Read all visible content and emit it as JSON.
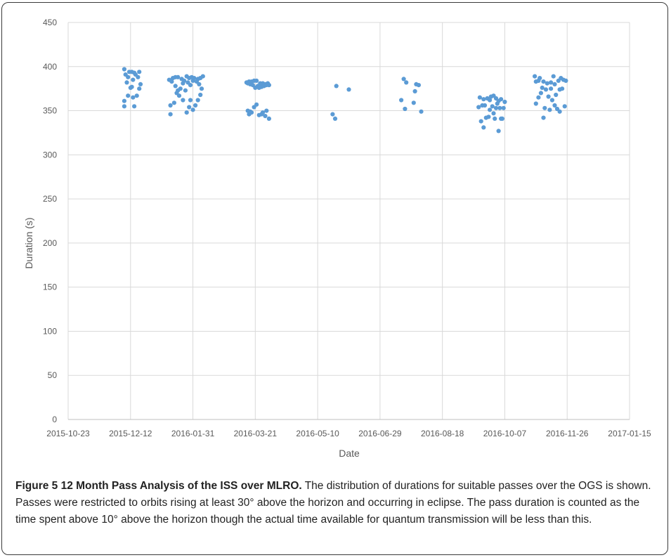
{
  "chart_data": {
    "type": "scatter",
    "title": "",
    "xlabel": "Date",
    "ylabel": "Duration (s)",
    "xlim": [
      "2015-10-23",
      "2017-01-15"
    ],
    "ylim": [
      0,
      450
    ],
    "x_tick_labels": [
      "2015-10-23",
      "2015-12-12",
      "2016-01-31",
      "2016-03-21",
      "2016-05-10",
      "2016-06-29",
      "2016-08-18",
      "2016-10-07",
      "2016-11-26",
      "2017-01-15"
    ],
    "y_tick_labels": [
      "0",
      "50",
      "100",
      "150",
      "200",
      "250",
      "300",
      "350",
      "400",
      "450"
    ],
    "y_ticks": [
      0,
      50,
      100,
      150,
      200,
      250,
      300,
      350,
      400,
      450
    ],
    "grid": true,
    "marker_color": "#5b9bd5",
    "points": [
      {
        "x": "2015-12-07",
        "y": 397
      },
      {
        "x": "2015-12-07",
        "y": 361
      },
      {
        "x": "2015-12-07",
        "y": 355
      },
      {
        "x": "2015-12-08",
        "y": 391
      },
      {
        "x": "2015-12-09",
        "y": 382
      },
      {
        "x": "2015-12-10",
        "y": 388
      },
      {
        "x": "2015-12-10",
        "y": 367
      },
      {
        "x": "2015-12-11",
        "y": 394
      },
      {
        "x": "2015-12-12",
        "y": 376
      },
      {
        "x": "2015-12-13",
        "y": 394
      },
      {
        "x": "2015-12-13",
        "y": 377
      },
      {
        "x": "2015-12-14",
        "y": 385
      },
      {
        "x": "2015-12-14",
        "y": 365
      },
      {
        "x": "2015-12-15",
        "y": 355
      },
      {
        "x": "2015-12-15",
        "y": 393
      },
      {
        "x": "2015-12-16",
        "y": 391
      },
      {
        "x": "2015-12-17",
        "y": 367
      },
      {
        "x": "2015-12-18",
        "y": 388
      },
      {
        "x": "2015-12-19",
        "y": 394
      },
      {
        "x": "2015-12-19",
        "y": 375
      },
      {
        "x": "2015-12-20",
        "y": 380
      },
      {
        "x": "2016-01-12",
        "y": 385
      },
      {
        "x": "2016-01-13",
        "y": 346
      },
      {
        "x": "2016-01-13",
        "y": 356
      },
      {
        "x": "2016-01-14",
        "y": 383
      },
      {
        "x": "2016-01-15",
        "y": 387
      },
      {
        "x": "2016-01-16",
        "y": 359
      },
      {
        "x": "2016-01-17",
        "y": 388
      },
      {
        "x": "2016-01-17",
        "y": 378
      },
      {
        "x": "2016-01-18",
        "y": 370
      },
      {
        "x": "2016-01-19",
        "y": 388
      },
      {
        "x": "2016-01-19",
        "y": 373
      },
      {
        "x": "2016-01-20",
        "y": 367
      },
      {
        "x": "2016-01-21",
        "y": 375
      },
      {
        "x": "2016-01-22",
        "y": 386
      },
      {
        "x": "2016-01-23",
        "y": 381
      },
      {
        "x": "2016-01-23",
        "y": 362
      },
      {
        "x": "2016-01-24",
        "y": 384
      },
      {
        "x": "2016-01-25",
        "y": 373
      },
      {
        "x": "2016-01-26",
        "y": 389
      },
      {
        "x": "2016-01-26",
        "y": 348
      },
      {
        "x": "2016-01-27",
        "y": 382
      },
      {
        "x": "2016-01-28",
        "y": 387
      },
      {
        "x": "2016-01-28",
        "y": 354
      },
      {
        "x": "2016-01-29",
        "y": 379
      },
      {
        "x": "2016-01-29",
        "y": 362
      },
      {
        "x": "2016-01-30",
        "y": 388
      },
      {
        "x": "2016-01-31",
        "y": 351
      },
      {
        "x": "2016-01-31",
        "y": 384
      },
      {
        "x": "2016-02-01",
        "y": 387
      },
      {
        "x": "2016-02-02",
        "y": 356
      },
      {
        "x": "2016-02-03",
        "y": 383
      },
      {
        "x": "2016-02-04",
        "y": 386
      },
      {
        "x": "2016-02-04",
        "y": 362
      },
      {
        "x": "2016-02-05",
        "y": 380
      },
      {
        "x": "2016-02-06",
        "y": 387
      },
      {
        "x": "2016-02-06",
        "y": 368
      },
      {
        "x": "2016-02-07",
        "y": 375
      },
      {
        "x": "2016-02-08",
        "y": 389
      },
      {
        "x": "2016-03-14",
        "y": 382
      },
      {
        "x": "2016-03-15",
        "y": 381
      },
      {
        "x": "2016-03-15",
        "y": 350
      },
      {
        "x": "2016-03-16",
        "y": 383
      },
      {
        "x": "2016-03-16",
        "y": 346
      },
      {
        "x": "2016-03-17",
        "y": 349
      },
      {
        "x": "2016-03-17",
        "y": 380
      },
      {
        "x": "2016-03-18",
        "y": 383
      },
      {
        "x": "2016-03-18",
        "y": 348
      },
      {
        "x": "2016-03-19",
        "y": 379
      },
      {
        "x": "2016-03-20",
        "y": 384
      },
      {
        "x": "2016-03-20",
        "y": 354
      },
      {
        "x": "2016-03-21",
        "y": 376
      },
      {
        "x": "2016-03-22",
        "y": 384
      },
      {
        "x": "2016-03-22",
        "y": 357
      },
      {
        "x": "2016-03-23",
        "y": 378
      },
      {
        "x": "2016-03-24",
        "y": 376
      },
      {
        "x": "2016-03-24",
        "y": 345
      },
      {
        "x": "2016-03-25",
        "y": 381
      },
      {
        "x": "2016-03-26",
        "y": 377
      },
      {
        "x": "2016-03-26",
        "y": 346
      },
      {
        "x": "2016-03-27",
        "y": 381
      },
      {
        "x": "2016-03-27",
        "y": 348
      },
      {
        "x": "2016-03-28",
        "y": 378
      },
      {
        "x": "2016-03-29",
        "y": 380
      },
      {
        "x": "2016-03-29",
        "y": 344
      },
      {
        "x": "2016-03-30",
        "y": 379
      },
      {
        "x": "2016-03-30",
        "y": 350
      },
      {
        "x": "2016-03-31",
        "y": 381
      },
      {
        "x": "2016-04-01",
        "y": 379
      },
      {
        "x": "2016-04-01",
        "y": 341
      },
      {
        "x": "2016-05-22",
        "y": 346
      },
      {
        "x": "2016-05-24",
        "y": 341
      },
      {
        "x": "2016-05-25",
        "y": 378
      },
      {
        "x": "2016-06-04",
        "y": 374
      },
      {
        "x": "2016-07-16",
        "y": 362
      },
      {
        "x": "2016-07-18",
        "y": 386
      },
      {
        "x": "2016-07-19",
        "y": 352
      },
      {
        "x": "2016-07-20",
        "y": 382
      },
      {
        "x": "2016-07-26",
        "y": 359
      },
      {
        "x": "2016-07-27",
        "y": 372
      },
      {
        "x": "2016-07-28",
        "y": 380
      },
      {
        "x": "2016-07-30",
        "y": 379
      },
      {
        "x": "2016-08-01",
        "y": 349
      },
      {
        "x": "2016-09-16",
        "y": 354
      },
      {
        "x": "2016-09-17",
        "y": 365
      },
      {
        "x": "2016-09-18",
        "y": 338
      },
      {
        "x": "2016-09-19",
        "y": 356
      },
      {
        "x": "2016-09-20",
        "y": 363
      },
      {
        "x": "2016-09-20",
        "y": 331
      },
      {
        "x": "2016-09-21",
        "y": 356
      },
      {
        "x": "2016-09-22",
        "y": 342
      },
      {
        "x": "2016-09-23",
        "y": 364
      },
      {
        "x": "2016-09-24",
        "y": 343
      },
      {
        "x": "2016-09-25",
        "y": 351
      },
      {
        "x": "2016-09-25",
        "y": 362
      },
      {
        "x": "2016-09-26",
        "y": 366
      },
      {
        "x": "2016-09-27",
        "y": 355
      },
      {
        "x": "2016-09-28",
        "y": 367
      },
      {
        "x": "2016-09-28",
        "y": 347
      },
      {
        "x": "2016-09-29",
        "y": 341
      },
      {
        "x": "2016-09-30",
        "y": 364
      },
      {
        "x": "2016-09-30",
        "y": 353
      },
      {
        "x": "2016-10-01",
        "y": 358
      },
      {
        "x": "2016-10-02",
        "y": 327
      },
      {
        "x": "2016-10-02",
        "y": 361
      },
      {
        "x": "2016-10-03",
        "y": 353
      },
      {
        "x": "2016-10-04",
        "y": 363
      },
      {
        "x": "2016-10-04",
        "y": 341
      },
      {
        "x": "2016-10-05",
        "y": 341
      },
      {
        "x": "2016-10-06",
        "y": 353
      },
      {
        "x": "2016-10-07",
        "y": 360
      },
      {
        "x": "2016-10-31",
        "y": 389
      },
      {
        "x": "2016-11-01",
        "y": 358
      },
      {
        "x": "2016-11-01",
        "y": 383
      },
      {
        "x": "2016-11-03",
        "y": 384
      },
      {
        "x": "2016-11-03",
        "y": 365
      },
      {
        "x": "2016-11-04",
        "y": 387
      },
      {
        "x": "2016-11-05",
        "y": 370
      },
      {
        "x": "2016-11-06",
        "y": 376
      },
      {
        "x": "2016-11-07",
        "y": 383
      },
      {
        "x": "2016-11-07",
        "y": 342
      },
      {
        "x": "2016-11-08",
        "y": 353
      },
      {
        "x": "2016-11-09",
        "y": 374
      },
      {
        "x": "2016-11-10",
        "y": 381
      },
      {
        "x": "2016-11-11",
        "y": 366
      },
      {
        "x": "2016-11-12",
        "y": 351
      },
      {
        "x": "2016-11-13",
        "y": 382
      },
      {
        "x": "2016-11-13",
        "y": 375
      },
      {
        "x": "2016-11-14",
        "y": 362
      },
      {
        "x": "2016-11-15",
        "y": 389
      },
      {
        "x": "2016-11-16",
        "y": 380
      },
      {
        "x": "2016-11-16",
        "y": 356
      },
      {
        "x": "2016-11-17",
        "y": 368
      },
      {
        "x": "2016-11-18",
        "y": 352
      },
      {
        "x": "2016-11-19",
        "y": 384
      },
      {
        "x": "2016-11-20",
        "y": 349
      },
      {
        "x": "2016-11-20",
        "y": 374
      },
      {
        "x": "2016-11-21",
        "y": 387
      },
      {
        "x": "2016-11-22",
        "y": 375
      },
      {
        "x": "2016-11-23",
        "y": 385
      },
      {
        "x": "2016-11-24",
        "y": 355
      },
      {
        "x": "2016-11-25",
        "y": 384
      }
    ]
  },
  "caption": {
    "label": "Figure 5  12 Month Pass Analysis of the ISS over MLRO.",
    "text": " The distribution of durations for suitable passes over the OGS is shown. Passes were restricted to orbits rising at least 30° above the horizon and occurring in eclipse. The pass duration is counted as the time spent above 10° above the horizon though the actual time available for quantum transmission will be less than this."
  }
}
